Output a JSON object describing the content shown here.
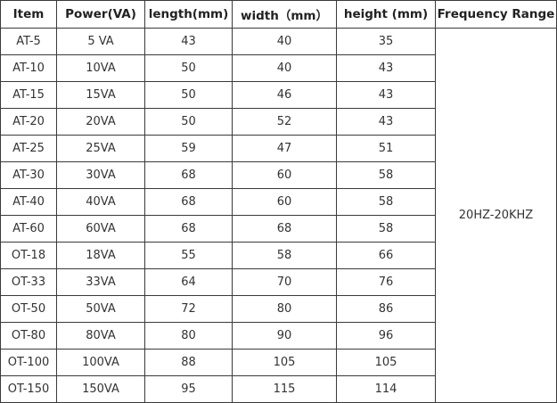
{
  "headers": [
    "Item",
    "Power(VA)",
    "length(mm)",
    "width（mm）",
    "height (mm)",
    "Frequency Range"
  ],
  "frequency_range": "20HZ-20KHZ",
  "rows": [
    [
      "AT-5",
      "5 VA",
      "43",
      "40",
      "35"
    ],
    [
      "AT-10",
      "10VA",
      "50",
      "40",
      "43"
    ],
    [
      "AT-15",
      "15VA",
      "50",
      "46",
      "43"
    ],
    [
      "AT-20",
      "20VA",
      "50",
      "52",
      "43"
    ],
    [
      "AT-25",
      "25VA",
      "59",
      "47",
      "51"
    ],
    [
      "AT-30",
      "30VA",
      "68",
      "60",
      "58"
    ],
    [
      "AT-40",
      "40VA",
      "68",
      "60",
      "58"
    ],
    [
      "AT-60",
      "60VA",
      "68",
      "68",
      "58"
    ],
    [
      "OT-18",
      "18VA",
      "55",
      "58",
      "66"
    ],
    [
      "OT-33",
      "33VA",
      "64",
      "70",
      "76"
    ],
    [
      "OT-50",
      "50VA",
      "72",
      "80",
      "86"
    ],
    [
      "OT-80",
      "80VA",
      "80",
      "90",
      "96"
    ],
    [
      "OT-100",
      "100VA",
      "88",
      "105",
      "105"
    ],
    [
      "OT-150",
      "150VA",
      "95",
      "115",
      "114"
    ]
  ]
}
